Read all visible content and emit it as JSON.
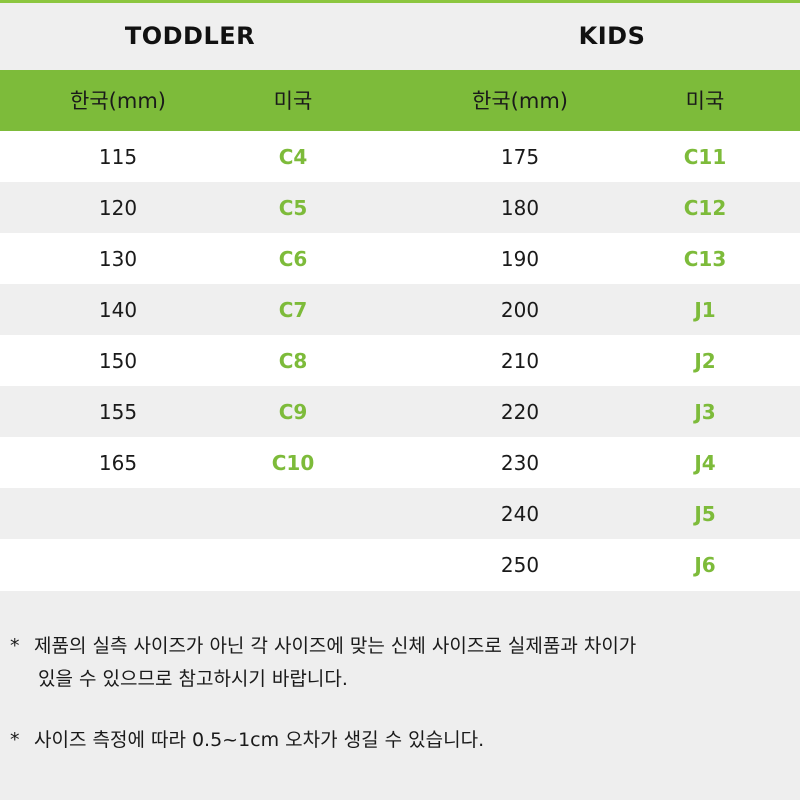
{
  "sections": [
    {
      "title": "TODDLER",
      "headers": [
        "한국(mm)",
        "미국"
      ],
      "rows": [
        [
          "115",
          "C4"
        ],
        [
          "120",
          "C5"
        ],
        [
          "130",
          "C6"
        ],
        [
          "140",
          "C7"
        ],
        [
          "150",
          "C8"
        ],
        [
          "155",
          "C9"
        ],
        [
          "165",
          "C10"
        ],
        [
          "",
          ""
        ],
        [
          "",
          ""
        ]
      ]
    },
    {
      "title": "KIDS",
      "headers": [
        "한국(mm)",
        "미국"
      ],
      "rows": [
        [
          "175",
          "C11"
        ],
        [
          "180",
          "C12"
        ],
        [
          "190",
          "C13"
        ],
        [
          "200",
          "J1"
        ],
        [
          "210",
          "J2"
        ],
        [
          "220",
          "J3"
        ],
        [
          "230",
          "J4"
        ],
        [
          "240",
          "J5"
        ],
        [
          "250",
          "J6"
        ]
      ]
    }
  ],
  "notes": [
    {
      "marker": "*",
      "lines": [
        "제품의 실측 사이즈가 아닌 각 사이즈에 맞는 신체 사이즈로 실제품과 차이가",
        "있을 수 있으므로 참고하시기 바랍니다."
      ]
    },
    {
      "marker": "*",
      "lines": [
        "사이즈 측정에 따라 0.5~1cm 오차가 생길 수 있습니다."
      ]
    }
  ],
  "colors": {
    "accent": "#7dbb3a",
    "stripe": "#efefef"
  }
}
